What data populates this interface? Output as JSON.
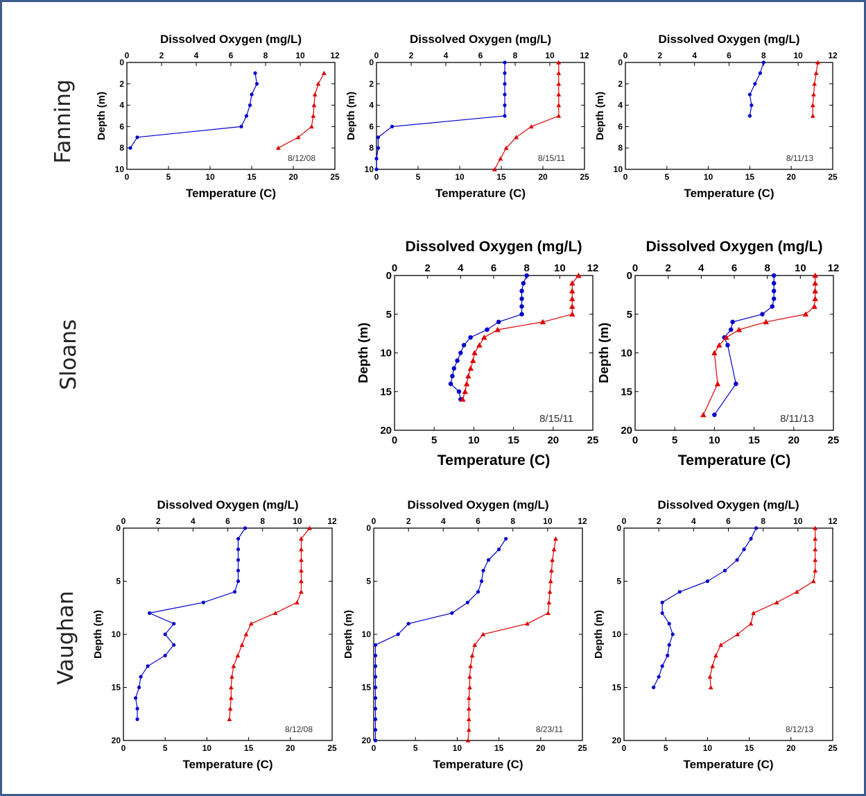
{
  "row_labels": [
    "Fanning",
    "Sloans",
    "Vaughan"
  ],
  "chart_data": [
    {
      "type": "line",
      "lake": "Fanning",
      "date_label": "8/12/08",
      "top_axis_label": "Dissolved Oxygen (mg/L)",
      "bottom_axis_label": "Temperature (C)",
      "ylabel": "Depth (m)",
      "do_lim": [
        0,
        12
      ],
      "do_ticks": [
        0,
        2,
        4,
        6,
        8,
        10,
        12
      ],
      "temp_lim": [
        0,
        25
      ],
      "temp_ticks": [
        0,
        5,
        10,
        15,
        20,
        25
      ],
      "depth_lim": [
        0,
        10
      ],
      "depth_ticks": [
        0,
        2,
        4,
        6,
        8,
        10
      ],
      "series": [
        {
          "quantity": "dissolved_oxygen",
          "color": "#0000cc",
          "marker": "circle",
          "depth": [
            1,
            2,
            3,
            4,
            5,
            6,
            7,
            8
          ],
          "values": [
            7.4,
            7.5,
            7.2,
            7.1,
            6.9,
            6.6,
            0.6,
            0.2
          ]
        },
        {
          "quantity": "temperature",
          "color": "#dd0000",
          "marker": "triangle",
          "depth": [
            1,
            2,
            3,
            4,
            5,
            6,
            7,
            8
          ],
          "values": [
            23.7,
            23.0,
            22.6,
            22.5,
            22.4,
            22.2,
            20.6,
            18.2
          ]
        }
      ]
    },
    {
      "type": "line",
      "lake": "Fanning",
      "date_label": "8/15/11",
      "top_axis_label": "Dissolved Oxygen (mg/L)",
      "bottom_axis_label": "Temperature (C)",
      "ylabel": "Depth (m)",
      "do_lim": [
        0,
        12
      ],
      "do_ticks": [
        0,
        2,
        4,
        6,
        8,
        10,
        12
      ],
      "temp_lim": [
        0,
        25
      ],
      "temp_ticks": [
        0,
        5,
        10,
        15,
        20,
        25
      ],
      "depth_lim": [
        0,
        10
      ],
      "depth_ticks": [
        0,
        2,
        4,
        6,
        8,
        10
      ],
      "series": [
        {
          "quantity": "dissolved_oxygen",
          "color": "#0000cc",
          "marker": "circle",
          "depth": [
            0,
            1,
            2,
            3,
            4,
            5,
            6,
            7,
            8,
            9,
            10
          ],
          "values": [
            7.4,
            7.4,
            7.4,
            7.4,
            7.4,
            7.4,
            0.9,
            0.1,
            0.1,
            0.0,
            0.0
          ]
        },
        {
          "quantity": "temperature",
          "color": "#dd0000",
          "marker": "triangle",
          "depth": [
            0,
            1,
            2,
            3,
            4,
            5,
            6,
            7,
            8,
            9,
            10
          ],
          "values": [
            21.9,
            21.9,
            21.9,
            21.9,
            21.9,
            21.9,
            18.6,
            16.8,
            15.6,
            14.9,
            14.2
          ]
        }
      ]
    },
    {
      "type": "line",
      "lake": "Fanning",
      "date_label": "8/11/13",
      "top_axis_label": "Dissolved Oxygen (mg/L)",
      "bottom_axis_label": "Temperature (C)",
      "ylabel": "Depth (m)",
      "do_lim": [
        0,
        12
      ],
      "do_ticks": [
        0,
        2,
        4,
        6,
        8,
        10,
        12
      ],
      "temp_lim": [
        0,
        25
      ],
      "temp_ticks": [
        0,
        5,
        10,
        15,
        20,
        25
      ],
      "depth_lim": [
        0,
        10
      ],
      "depth_ticks": [
        0,
        2,
        4,
        6,
        8,
        10
      ],
      "series": [
        {
          "quantity": "dissolved_oxygen",
          "color": "#0000cc",
          "marker": "circle",
          "depth": [
            0,
            1,
            2,
            3,
            4,
            5
          ],
          "values": [
            8.0,
            7.8,
            7.5,
            7.2,
            7.3,
            7.2
          ]
        },
        {
          "quantity": "temperature",
          "color": "#dd0000",
          "marker": "triangle",
          "depth": [
            0,
            1,
            2,
            3,
            4,
            5
          ],
          "values": [
            23.2,
            23.0,
            22.8,
            22.7,
            22.6,
            22.6
          ]
        }
      ]
    },
    {
      "type": "line",
      "lake": "Sloans",
      "date_label": "8/15/11",
      "top_axis_label": "Dissolved Oxygen (mg/L)",
      "bottom_axis_label": "Temperature (C)",
      "ylabel": "Depth (m)",
      "do_lim": [
        0,
        12
      ],
      "do_ticks": [
        0,
        2,
        4,
        6,
        8,
        10,
        12
      ],
      "temp_lim": [
        0,
        25
      ],
      "temp_ticks": [
        0,
        5,
        10,
        15,
        20,
        25
      ],
      "depth_lim": [
        0,
        20
      ],
      "depth_ticks": [
        0,
        5,
        10,
        15,
        20
      ],
      "series": [
        {
          "quantity": "dissolved_oxygen",
          "color": "#0000cc",
          "marker": "circle",
          "depth": [
            0,
            1,
            2,
            3,
            4,
            5,
            6,
            7,
            8,
            9,
            10,
            11,
            12,
            13,
            14,
            15,
            16
          ],
          "values": [
            8.0,
            7.8,
            7.7,
            7.7,
            7.7,
            7.7,
            6.3,
            5.6,
            4.6,
            4.2,
            4.0,
            3.8,
            3.6,
            3.5,
            3.4,
            3.9,
            4.0
          ]
        },
        {
          "quantity": "temperature",
          "color": "#dd0000",
          "marker": "triangle",
          "depth": [
            0,
            1,
            2,
            3,
            4,
            5,
            6,
            7,
            8,
            9,
            10,
            11,
            12,
            13,
            14,
            15,
            16
          ],
          "values": [
            23.2,
            22.4,
            22.4,
            22.4,
            22.4,
            22.4,
            18.7,
            13.0,
            11.3,
            10.7,
            10.1,
            9.9,
            9.6,
            9.3,
            9.1,
            8.9,
            8.6
          ]
        }
      ]
    },
    {
      "type": "line",
      "lake": "Sloans",
      "date_label": "8/11/13",
      "top_axis_label": "Dissolved Oxygen (mg/L)",
      "bottom_axis_label": "Temperature (C)",
      "ylabel": "Depth (m)",
      "do_lim": [
        0,
        12
      ],
      "do_ticks": [
        0,
        2,
        4,
        6,
        8,
        10,
        12
      ],
      "temp_lim": [
        0,
        25
      ],
      "temp_ticks": [
        0,
        5,
        10,
        15,
        20,
        25
      ],
      "depth_lim": [
        0,
        20
      ],
      "depth_ticks": [
        0,
        5,
        10,
        15,
        20
      ],
      "series": [
        {
          "quantity": "dissolved_oxygen",
          "color": "#0000cc",
          "marker": "circle",
          "depth": [
            0,
            1,
            2,
            3,
            4,
            5,
            6,
            7,
            8,
            9,
            14,
            18
          ],
          "values": [
            8.4,
            8.4,
            8.4,
            8.4,
            8.3,
            7.7,
            5.9,
            5.8,
            5.4,
            5.6,
            6.1,
            4.8
          ]
        },
        {
          "quantity": "temperature",
          "color": "#dd0000",
          "marker": "triangle",
          "depth": [
            0,
            1,
            2,
            3,
            4,
            5,
            6,
            7,
            8,
            9,
            10,
            14,
            18
          ],
          "values": [
            22.7,
            22.7,
            22.7,
            22.7,
            22.6,
            21.5,
            16.5,
            13.1,
            11.5,
            10.6,
            10.0,
            10.4,
            8.6
          ]
        }
      ]
    },
    {
      "type": "line",
      "lake": "Vaughan",
      "date_label": "8/12/08",
      "top_axis_label": "Dissolved Oxygen (mg/L)",
      "bottom_axis_label": "Temperature (C)",
      "ylabel": "Depth (m)",
      "do_lim": [
        0,
        12
      ],
      "do_ticks": [
        0,
        2,
        4,
        6,
        8,
        10,
        12
      ],
      "temp_lim": [
        0,
        25
      ],
      "temp_ticks": [
        0,
        5,
        10,
        15,
        20,
        25
      ],
      "depth_lim": [
        0,
        20
      ],
      "depth_ticks": [
        0,
        5,
        10,
        15,
        20
      ],
      "series": [
        {
          "quantity": "dissolved_oxygen",
          "color": "#0000cc",
          "marker": "circle",
          "depth": [
            0,
            1,
            2,
            3,
            4,
            5,
            6,
            7,
            8,
            9,
            10,
            11,
            12,
            13,
            14,
            15,
            16,
            17,
            18
          ],
          "values": [
            7.0,
            6.6,
            6.6,
            6.6,
            6.6,
            6.6,
            6.4,
            4.6,
            1.5,
            2.9,
            2.4,
            2.9,
            2.4,
            1.4,
            1.0,
            0.9,
            0.7,
            0.8,
            0.8
          ]
        },
        {
          "quantity": "temperature",
          "color": "#dd0000",
          "marker": "triangle",
          "depth": [
            0,
            1,
            2,
            3,
            4,
            5,
            6,
            7,
            8,
            9,
            10,
            11,
            12,
            13,
            14,
            15,
            16,
            17,
            18
          ],
          "values": [
            22.3,
            21.3,
            21.3,
            21.3,
            21.3,
            21.3,
            21.3,
            20.8,
            18.2,
            15.3,
            14.7,
            14.2,
            13.7,
            13.2,
            13.0,
            12.9,
            12.9,
            12.8,
            12.7
          ]
        }
      ]
    },
    {
      "type": "line",
      "lake": "Vaughan",
      "date_label": "8/23/11",
      "top_axis_label": "Dissolved Oxygen (mg/L)",
      "bottom_axis_label": "Temperature (C)",
      "ylabel": "Depth (m)",
      "do_lim": [
        0,
        12
      ],
      "do_ticks": [
        0,
        2,
        4,
        6,
        8,
        10,
        12
      ],
      "temp_lim": [
        0,
        25
      ],
      "temp_ticks": [
        0,
        5,
        10,
        15,
        20,
        25
      ],
      "depth_lim": [
        0,
        20
      ],
      "depth_ticks": [
        0,
        5,
        10,
        15,
        20
      ],
      "series": [
        {
          "quantity": "dissolved_oxygen",
          "color": "#0000cc",
          "marker": "circle",
          "depth": [
            1,
            2,
            3,
            4,
            5,
            6,
            7,
            8,
            9,
            10,
            11,
            12,
            13,
            14,
            15,
            16,
            17,
            18,
            19,
            20
          ],
          "values": [
            7.6,
            7.2,
            6.6,
            6.3,
            6.2,
            6.0,
            5.4,
            4.5,
            2.0,
            1.4,
            0.1,
            0.1,
            0.1,
            0.1,
            0.1,
            0.1,
            0.1,
            0.1,
            0.1,
            0.1
          ]
        },
        {
          "quantity": "temperature",
          "color": "#dd0000",
          "marker": "triangle",
          "depth": [
            1,
            2,
            3,
            4,
            5,
            6,
            7,
            8,
            9,
            10,
            11,
            12,
            13,
            14,
            15,
            16,
            17,
            18,
            19,
            20
          ],
          "values": [
            21.8,
            21.6,
            21.4,
            21.3,
            21.2,
            21.1,
            21.0,
            20.9,
            18.4,
            13.1,
            12.1,
            11.8,
            11.6,
            11.5,
            11.5,
            11.4,
            11.4,
            11.4,
            11.4,
            11.3
          ]
        }
      ]
    },
    {
      "type": "line",
      "lake": "Vaughan",
      "date_label": "8/12/13",
      "top_axis_label": "Dissolved Oxygen (mg/L)",
      "bottom_axis_label": "Temperature (C)",
      "ylabel": "Depth (m)",
      "do_lim": [
        0,
        12
      ],
      "do_ticks": [
        0,
        2,
        4,
        6,
        8,
        10,
        12
      ],
      "temp_lim": [
        0,
        25
      ],
      "temp_ticks": [
        0,
        5,
        10,
        15,
        20,
        25
      ],
      "depth_lim": [
        0,
        20
      ],
      "depth_ticks": [
        0,
        5,
        10,
        15,
        20
      ],
      "series": [
        {
          "quantity": "dissolved_oxygen",
          "color": "#0000cc",
          "marker": "circle",
          "depth": [
            0,
            1,
            2,
            3,
            4,
            5,
            6,
            7,
            8,
            9,
            10,
            11,
            12,
            13,
            14,
            15
          ],
          "values": [
            7.6,
            7.3,
            6.9,
            6.5,
            5.8,
            4.8,
            3.2,
            2.2,
            2.2,
            2.6,
            2.8,
            2.6,
            2.5,
            2.2,
            2.0,
            1.7
          ]
        },
        {
          "quantity": "temperature",
          "color": "#dd0000",
          "marker": "triangle",
          "depth": [
            0,
            1,
            2,
            3,
            4,
            5,
            6,
            7,
            8,
            9,
            10,
            11,
            12,
            13,
            14,
            15
          ],
          "values": [
            22.9,
            22.9,
            22.9,
            22.9,
            22.9,
            22.7,
            20.7,
            18.3,
            15.5,
            15.2,
            13.6,
            11.6,
            11.0,
            10.6,
            10.3,
            10.4
          ]
        }
      ]
    }
  ]
}
